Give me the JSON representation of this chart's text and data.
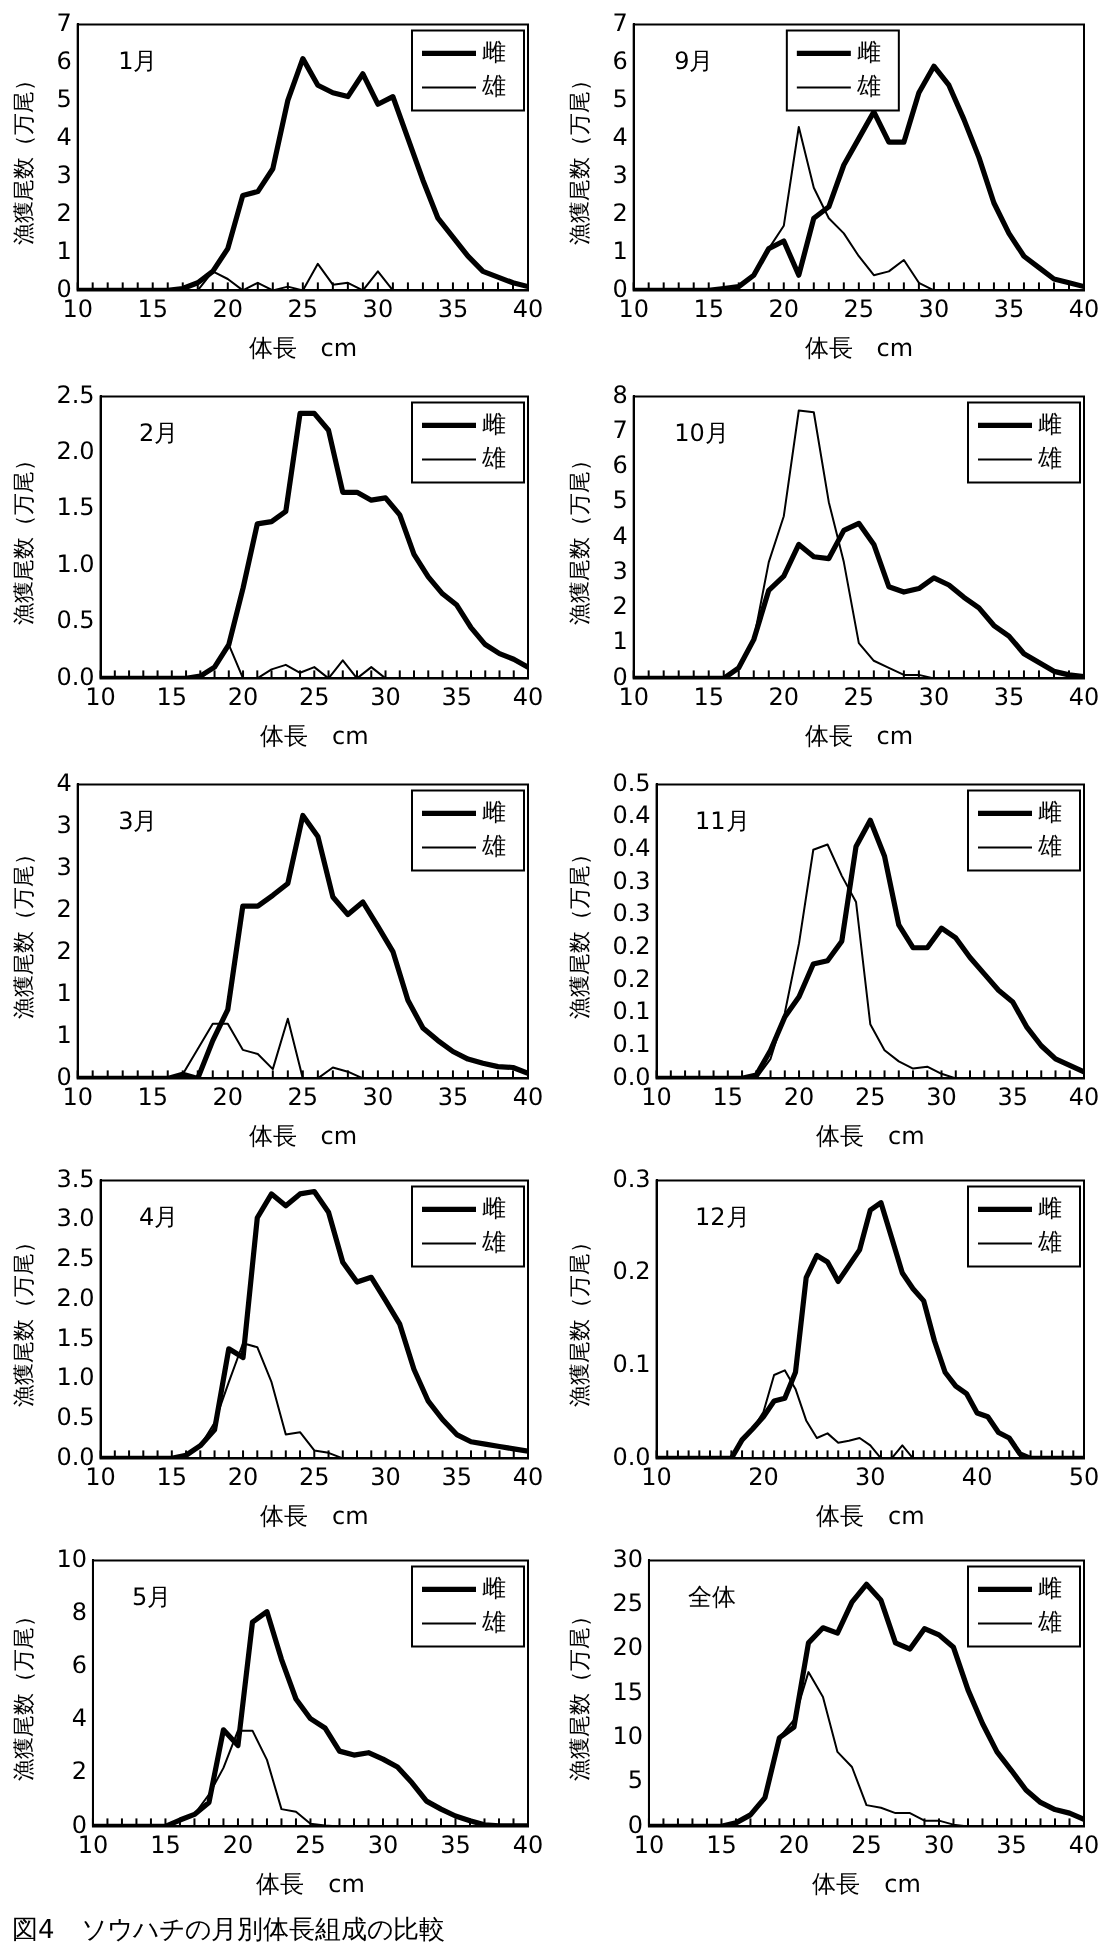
{
  "chart_data": [
    {
      "type": "line",
      "title": "1月",
      "xlabel": "体長　cm",
      "ylabel": "漁獲尾数（万尾）",
      "legend": "top right",
      "marker": "none",
      "line_style": "solid",
      "x": [
        10,
        11,
        12,
        13,
        14,
        15,
        16,
        17,
        18,
        19,
        20,
        21,
        22,
        23,
        24,
        25,
        26,
        27,
        28,
        29,
        30,
        31,
        32,
        33,
        34,
        35,
        36,
        37,
        38,
        39,
        40
      ],
      "xlim": [
        10,
        40
      ],
      "xticks": [
        10,
        15,
        20,
        25,
        30,
        35,
        40
      ],
      "ylim": [
        0,
        7
      ],
      "yticks": [
        0,
        1,
        2,
        3,
        4,
        5,
        6,
        7
      ],
      "series": [
        {
          "name": "雌",
          "color": "#000000",
          "values": [
            0,
            0,
            0,
            0,
            0,
            0,
            0,
            0.05,
            0.2,
            0.5,
            1.1,
            2.5,
            2.6,
            3.2,
            5.0,
            6.1,
            5.4,
            5.2,
            5.1,
            5.7,
            4.9,
            5.1,
            4.0,
            2.9,
            1.9,
            1.4,
            0.9,
            0.5,
            0.35,
            0.2,
            0.1
          ]
        },
        {
          "name": "雄",
          "color": "#000000",
          "values": [
            0,
            0,
            0,
            0,
            0,
            0,
            0,
            0,
            0,
            0.5,
            0.3,
            0,
            0.2,
            0,
            0.1,
            0,
            0.7,
            0.15,
            0.2,
            0,
            0.5,
            0,
            0,
            0,
            0,
            0,
            0,
            0,
            0,
            0,
            0
          ]
        }
      ]
    },
    {
      "type": "line",
      "title": "9月",
      "xlabel": "体長　cm",
      "ylabel": "漁獲尾数（万尾）",
      "legend": "top",
      "marker": "none",
      "line_style": "solid",
      "x": [
        10,
        11,
        12,
        13,
        14,
        15,
        16,
        17,
        18,
        19,
        20,
        21,
        22,
        23,
        24,
        25,
        26,
        27,
        28,
        29,
        30,
        31,
        32,
        33,
        34,
        35,
        36,
        37,
        38,
        39,
        40
      ],
      "xlim": [
        10,
        40
      ],
      "xticks": [
        10,
        15,
        20,
        25,
        30,
        35,
        40
      ],
      "ylim": [
        0,
        7
      ],
      "yticks": [
        0,
        1,
        2,
        3,
        4,
        5,
        6,
        7
      ],
      "series": [
        {
          "name": "雌",
          "color": "#000000",
          "values": [
            0,
            0,
            0,
            0,
            0,
            0,
            0.05,
            0.1,
            0.4,
            1.1,
            1.3,
            0.4,
            1.9,
            2.2,
            3.3,
            4.0,
            4.7,
            3.9,
            3.9,
            5.2,
            5.9,
            5.4,
            4.5,
            3.5,
            2.3,
            1.5,
            0.9,
            0.6,
            0.3,
            0.2,
            0.1
          ]
        },
        {
          "name": "雄",
          "color": "#000000",
          "values": [
            0,
            0,
            0,
            0,
            0,
            0,
            0.05,
            0.1,
            0.4,
            1.1,
            1.7,
            4.3,
            2.7,
            1.9,
            1.5,
            0.9,
            0.4,
            0.5,
            0.8,
            0.2,
            0,
            0,
            0,
            0,
            0,
            0,
            0,
            0,
            0,
            0,
            0
          ]
        }
      ]
    },
    {
      "type": "line",
      "title": "2月",
      "xlabel": "体長　cm",
      "ylabel": "漁獲尾数（万尾）",
      "legend": "top right",
      "marker": "none",
      "line_style": "solid",
      "x": [
        10,
        11,
        12,
        13,
        14,
        15,
        16,
        17,
        18,
        19,
        20,
        21,
        22,
        23,
        24,
        25,
        26,
        27,
        28,
        29,
        30,
        31,
        32,
        33,
        34,
        35,
        36,
        37,
        38,
        39,
        40
      ],
      "xlim": [
        10,
        40
      ],
      "xticks": [
        10,
        15,
        20,
        25,
        30,
        35,
        40
      ],
      "ylim": [
        0,
        2.5
      ],
      "yticks": [
        {
          "value": 0,
          "label": "0.0"
        },
        0.5,
        {
          "value": 1,
          "label": "1.0"
        },
        1.5,
        {
          "value": 2,
          "label": "2.0"
        },
        2.5
      ],
      "series": [
        {
          "name": "雌",
          "color": "#000000",
          "values": [
            0,
            0,
            0,
            0,
            0,
            0,
            0,
            0.02,
            0.1,
            0.3,
            0.8,
            1.37,
            1.39,
            1.48,
            2.35,
            2.35,
            2.2,
            1.65,
            1.65,
            1.58,
            1.6,
            1.45,
            1.1,
            0.9,
            0.75,
            0.65,
            0.45,
            0.3,
            0.22,
            0.17,
            0.1
          ]
        },
        {
          "name": "雄",
          "color": "#000000",
          "values": [
            0,
            0,
            0,
            0,
            0,
            0,
            0,
            0,
            0.1,
            0.3,
            0,
            0,
            0.08,
            0.12,
            0.05,
            0.1,
            0,
            0.16,
            0,
            0.1,
            0,
            0,
            0,
            0,
            0,
            0,
            0,
            0,
            0,
            0,
            0
          ]
        }
      ]
    },
    {
      "type": "line",
      "title": "10月",
      "xlabel": "体長　cm",
      "ylabel": "漁獲尾数（万尾）",
      "legend": "top right",
      "marker": "none",
      "line_style": "solid",
      "x": [
        10,
        11,
        12,
        13,
        14,
        15,
        16,
        17,
        18,
        19,
        20,
        21,
        22,
        23,
        24,
        25,
        26,
        27,
        28,
        29,
        30,
        31,
        32,
        33,
        34,
        35,
        36,
        37,
        38,
        39,
        40
      ],
      "xlim": [
        10,
        40
      ],
      "xticks": [
        10,
        15,
        20,
        25,
        30,
        35,
        40
      ],
      "ylim": [
        0,
        8
      ],
      "yticks": [
        0,
        1,
        2,
        3,
        4,
        5,
        6,
        7,
        8
      ],
      "series": [
        {
          "name": "雌",
          "color": "#000000",
          "values": [
            0,
            0,
            0,
            0,
            0,
            0,
            0,
            0.3,
            1.1,
            2.5,
            2.9,
            3.8,
            3.45,
            3.4,
            4.2,
            4.4,
            3.8,
            2.6,
            2.45,
            2.55,
            2.85,
            2.65,
            2.3,
            2.0,
            1.5,
            1.2,
            0.7,
            0.45,
            0.2,
            0.1,
            0.05
          ]
        },
        {
          "name": "雄",
          "color": "#000000",
          "values": [
            0,
            0,
            0,
            0,
            0,
            0,
            0,
            0.3,
            1.1,
            3.3,
            4.6,
            7.6,
            7.55,
            5.0,
            3.3,
            1.0,
            0.5,
            0.3,
            0.1,
            0.1,
            0,
            0,
            0,
            0,
            0,
            0,
            0,
            0,
            0,
            0,
            0
          ]
        }
      ]
    },
    {
      "type": "line",
      "title": "3月",
      "xlabel": "体長　cm",
      "ylabel": "漁獲尾数（万尾）",
      "legend": "top right",
      "marker": "none",
      "line_style": "solid",
      "x": [
        10,
        11,
        12,
        13,
        14,
        15,
        16,
        17,
        18,
        19,
        20,
        21,
        22,
        23,
        24,
        25,
        26,
        27,
        28,
        29,
        30,
        31,
        32,
        33,
        34,
        35,
        36,
        37,
        38,
        39,
        40
      ],
      "xlim": [
        10,
        40
      ],
      "xticks": [
        10,
        15,
        20,
        25,
        30,
        35,
        40
      ],
      "ylim": [
        0,
        3.5
      ],
      "yticks": [
        0,
        {
          "value": 0.5,
          "label": "1"
        },
        1,
        {
          "value": 1.5,
          "label": "2"
        },
        2,
        {
          "value": 2.5,
          "label": "3"
        },
        3,
        {
          "value": 3.5,
          "label": "4"
        }
      ],
      "series": [
        {
          "name": "雌",
          "color": "#000000",
          "values": [
            0,
            0,
            0,
            0,
            0,
            0,
            0,
            0.05,
            0,
            0.45,
            0.82,
            2.05,
            2.05,
            2.18,
            2.32,
            3.13,
            2.88,
            2.16,
            1.95,
            2.1,
            1.81,
            1.51,
            0.93,
            0.6,
            0.45,
            0.32,
            0.23,
            0.18,
            0.14,
            0.13,
            0.06
          ]
        },
        {
          "name": "雄",
          "color": "#000000",
          "values": [
            0,
            0,
            0,
            0,
            0,
            0,
            0,
            0.05,
            0.35,
            0.65,
            0.65,
            0.34,
            0.29,
            0.11,
            0.71,
            0,
            0,
            0.13,
            0.08,
            0,
            0,
            0,
            0,
            0,
            0,
            0,
            0,
            0,
            0,
            0,
            0
          ]
        }
      ]
    },
    {
      "type": "line",
      "title": "11月",
      "xlabel": "体長　cm",
      "ylabel": "漁獲尾数（万尾）",
      "legend": "top right",
      "marker": "none",
      "line_style": "solid",
      "x": [
        10,
        11,
        12,
        13,
        14,
        15,
        16,
        17,
        18,
        19,
        20,
        21,
        22,
        23,
        24,
        25,
        26,
        27,
        28,
        29,
        30,
        31,
        32,
        33,
        34,
        35,
        36,
        37,
        38,
        39,
        40
      ],
      "xlim": [
        10,
        40
      ],
      "xticks": [
        10,
        15,
        20,
        25,
        30,
        35,
        40
      ],
      "ylim": [
        0,
        0.45
      ],
      "yticks": [
        {
          "value": 0,
          "label": "0.0"
        },
        {
          "value": 0.05,
          "label": "0.1"
        },
        0.1,
        {
          "value": 0.15,
          "label": "0.2"
        },
        0.2,
        {
          "value": 0.25,
          "label": "0.3"
        },
        0.3,
        {
          "value": 0.35,
          "label": "0.4"
        },
        0.4,
        {
          "value": 0.45,
          "label": "0.5"
        }
      ],
      "series": [
        {
          "name": "雌",
          "color": "#000000",
          "values": [
            0,
            0,
            0,
            0,
            0,
            0,
            0,
            0.005,
            0.043,
            0.094,
            0.125,
            0.175,
            0.18,
            0.21,
            0.355,
            0.395,
            0.34,
            0.235,
            0.2,
            0.2,
            0.23,
            0.215,
            0.185,
            0.16,
            0.135,
            0.117,
            0.078,
            0.05,
            0.03,
            0.02,
            0.01
          ]
        },
        {
          "name": "雄",
          "color": "#000000",
          "values": [
            0,
            0,
            0,
            0,
            0,
            0,
            0,
            0,
            0.03,
            0.1,
            0.207,
            0.35,
            0.358,
            0.31,
            0.27,
            0.083,
            0.043,
            0.026,
            0.015,
            0.018,
            0.007,
            0,
            0,
            0,
            0,
            0,
            0,
            0,
            0,
            0,
            0
          ]
        }
      ]
    },
    {
      "type": "line",
      "title": "4月",
      "xlabel": "体長　cm",
      "ylabel": "漁獲尾数（万尾）",
      "legend": "top right",
      "marker": "none",
      "line_style": "solid",
      "x": [
        10,
        11,
        12,
        13,
        14,
        15,
        16,
        17,
        18,
        19,
        20,
        21,
        22,
        23,
        24,
        25,
        26,
        27,
        28,
        29,
        30,
        31,
        32,
        33,
        34,
        35,
        36,
        37,
        38,
        39,
        40
      ],
      "xlim": [
        10,
        40
      ],
      "xticks": [
        10,
        15,
        20,
        25,
        30,
        35,
        40
      ],
      "ylim": [
        0,
        3.5
      ],
      "yticks": [
        {
          "value": 0,
          "label": "0.0"
        },
        0.5,
        {
          "value": 1,
          "label": "1.0"
        },
        1.5,
        {
          "value": 2,
          "label": "2.0"
        },
        2.5,
        {
          "value": 3,
          "label": "3.0"
        },
        3.5
      ],
      "series": [
        {
          "name": "雌",
          "color": "#000000",
          "values": [
            0,
            0,
            0,
            0,
            0,
            0,
            0.04,
            0.16,
            0.36,
            1.38,
            1.27,
            3.03,
            3.33,
            3.18,
            3.33,
            3.36,
            3.1,
            2.47,
            2.22,
            2.28,
            1.99,
            1.69,
            1.12,
            0.72,
            0.49,
            0.3,
            0.21,
            0.18,
            0.15,
            0.12,
            0.09
          ]
        },
        {
          "name": "雄",
          "color": "#000000",
          "values": [
            0,
            0,
            0,
            0,
            0,
            0,
            0.04,
            0.16,
            0.45,
            0.96,
            1.45,
            1.4,
            0.96,
            0.3,
            0.33,
            0.1,
            0.07,
            0,
            0,
            0,
            0,
            0,
            0,
            0,
            0,
            0,
            0,
            0,
            0,
            0,
            0
          ]
        }
      ]
    },
    {
      "type": "line",
      "title": "12月",
      "xlabel": "体長　cm",
      "ylabel": "漁獲尾数（万尾）",
      "legend": "top right",
      "marker": "none",
      "line_style": "solid",
      "x": [
        10,
        11,
        12,
        13,
        14,
        15,
        16,
        17,
        18,
        19,
        20,
        21,
        22,
        23,
        24,
        25,
        26,
        27,
        28,
        29,
        30,
        31,
        32,
        33,
        34,
        35,
        36,
        37,
        38,
        39,
        40,
        41,
        42,
        43,
        44,
        45,
        46,
        47,
        48,
        49,
        50
      ],
      "xlim": [
        10,
        50
      ],
      "xticks": [
        10,
        20,
        30,
        40,
        50
      ],
      "ylim": [
        0,
        0.3
      ],
      "yticks": [
        {
          "value": 0,
          "label": "0.0"
        },
        0.1,
        0.2,
        0.3
      ],
      "series": [
        {
          "name": "雌",
          "color": "#000000",
          "values": [
            0,
            0,
            0,
            0,
            0,
            0,
            0,
            0,
            0.02,
            0.032,
            0.045,
            0.062,
            0.065,
            0.093,
            0.195,
            0.219,
            0.212,
            0.191,
            0.208,
            0.225,
            0.268,
            0.276,
            0.238,
            0.2,
            0.183,
            0.17,
            0.127,
            0.093,
            0.078,
            0.07,
            0.049,
            0.045,
            0.028,
            0.022,
            0.005,
            0,
            0,
            0,
            0,
            0,
            0
          ]
        },
        {
          "name": "雄",
          "color": "#000000",
          "values": [
            0,
            0,
            0,
            0,
            0,
            0,
            0,
            0,
            0.02,
            0.032,
            0.05,
            0.09,
            0.095,
            0.075,
            0.041,
            0.022,
            0.027,
            0.017,
            0.019,
            0.022,
            0.014,
            0,
            0,
            0.014,
            0,
            0,
            0,
            0,
            0,
            0,
            0,
            0,
            0,
            0,
            0,
            0,
            0,
            0,
            0,
            0,
            0
          ]
        }
      ]
    },
    {
      "type": "line",
      "title": "5月",
      "xlabel": "体長　cm",
      "ylabel": "漁獲尾数（万尾）",
      "legend": "top right",
      "marker": "none",
      "line_style": "solid",
      "x": [
        10,
        11,
        12,
        13,
        14,
        15,
        16,
        17,
        18,
        19,
        20,
        21,
        22,
        23,
        24,
        25,
        26,
        27,
        28,
        29,
        30,
        31,
        32,
        33,
        34,
        35,
        36,
        37,
        38,
        39,
        40
      ],
      "xlim": [
        10,
        40
      ],
      "xticks": [
        10,
        15,
        20,
        25,
        30,
        35,
        40
      ],
      "ylim": [
        0,
        10
      ],
      "yticks": [
        0,
        2,
        4,
        6,
        8,
        10
      ],
      "series": [
        {
          "name": "雌",
          "color": "#000000",
          "values": [
            0,
            0,
            0,
            0,
            0,
            0,
            0.24,
            0.45,
            0.9,
            3.63,
            3.04,
            7.68,
            8.07,
            6.28,
            4.79,
            4.05,
            3.7,
            2.83,
            2.68,
            2.77,
            2.53,
            2.23,
            1.64,
            0.95,
            0.65,
            0.39,
            0.21,
            0.06,
            0.02,
            0.02,
            0.02
          ]
        },
        {
          "name": "雄",
          "color": "#000000",
          "values": [
            0,
            0,
            0,
            0,
            0,
            0,
            0.24,
            0.45,
            1.2,
            2.2,
            3.6,
            3.6,
            2.5,
            0.65,
            0.55,
            0.1,
            0.03,
            0,
            0,
            0,
            0,
            0,
            0,
            0,
            0,
            0,
            0,
            0,
            0,
            0,
            0
          ]
        }
      ]
    },
    {
      "type": "line",
      "title": "全体",
      "xlabel": "体長　cm",
      "ylabel": "漁獲尾数（万尾）",
      "legend": "top right",
      "marker": "none",
      "line_style": "solid",
      "x": [
        10,
        11,
        12,
        13,
        14,
        15,
        16,
        17,
        18,
        19,
        20,
        21,
        22,
        23,
        24,
        25,
        26,
        27,
        28,
        29,
        30,
        31,
        32,
        33,
        34,
        35,
        36,
        37,
        38,
        39,
        40
      ],
      "xlim": [
        10,
        40
      ],
      "xticks": [
        10,
        15,
        20,
        25,
        30,
        35,
        40
      ],
      "ylim": [
        0,
        30
      ],
      "yticks": [
        0,
        5,
        10,
        15,
        20,
        25,
        30
      ],
      "annotations": [
        "図4　ソウハチの月別体長組成の比較"
      ],
      "series": [
        {
          "name": "雌",
          "color": "#000000",
          "values": [
            0,
            0,
            0,
            0,
            0,
            0,
            0.4,
            1.3,
            3.25,
            10,
            11.2,
            20.7,
            22.4,
            21.8,
            25.3,
            27.3,
            25.5,
            20.7,
            20,
            22.3,
            21.6,
            20.2,
            15.4,
            11.6,
            8.4,
            6.3,
            4.1,
            2.7,
            1.9,
            1.5,
            0.8
          ]
        },
        {
          "name": "雄",
          "color": "#000000",
          "values": [
            0,
            0,
            0,
            0,
            0,
            0,
            0.4,
            1.3,
            3.0,
            10,
            12,
            17.4,
            14.6,
            8.4,
            6.7,
            2.4,
            2.1,
            1.5,
            1.5,
            0.65,
            0.65,
            0.2,
            0,
            0,
            0,
            0,
            0,
            0,
            0,
            0,
            0
          ]
        }
      ]
    }
  ]
}
